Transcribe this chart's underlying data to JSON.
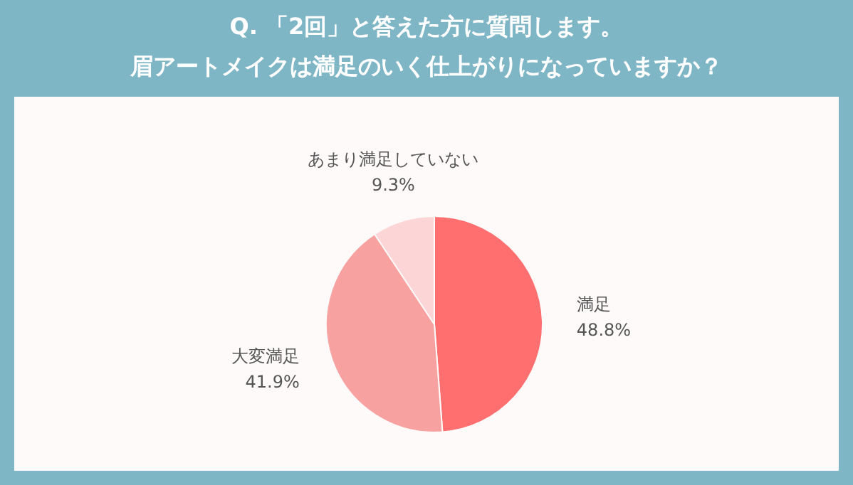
{
  "chart_data": {
    "type": "pie",
    "title": "Q. 「2回」と答えた方に質問します。",
    "subtitle": "眉アートメイクは満足のいく仕上がりになっていますか？",
    "categories": [
      "満足",
      "大変満足",
      "あまり満足していない"
    ],
    "values": [
      48.8,
      41.9,
      9.3
    ],
    "colors": [
      "#ff6f6f",
      "#f7a1a1",
      "#fcd6d6"
    ],
    "value_labels": [
      "48.8%",
      "41.9%",
      "9.3%"
    ],
    "legend": false
  }
}
